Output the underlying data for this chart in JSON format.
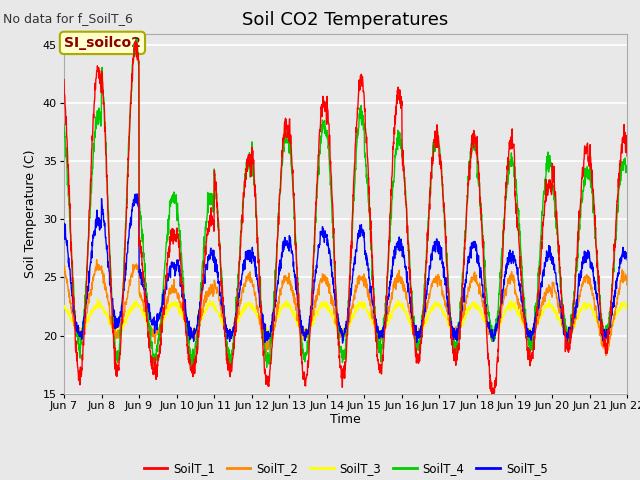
{
  "title": "Soil CO2 Temperatures",
  "xlabel": "Time",
  "ylabel": "Soil Temperature (C)",
  "note": "No data for f_SoilT_6",
  "annotation": "SI_soilco2",
  "ylim": [
    15,
    46
  ],
  "yticks": [
    15,
    20,
    25,
    30,
    35,
    40,
    45
  ],
  "background_color": "#e8e8e8",
  "plot_bg_color": "#e8e8e8",
  "series_colors": {
    "SoilT_1": "#ff0000",
    "SoilT_2": "#ff8800",
    "SoilT_3": "#ffff00",
    "SoilT_4": "#00cc00",
    "SoilT_5": "#0000ff"
  },
  "xtick_labels": [
    "Jun 7",
    "Jun 8",
    "Jun 9",
    "Jun 10",
    "Jun 11",
    "Jun 12",
    "Jun 13",
    "Jun 14",
    "Jun 15",
    "Jun 16",
    "Jun 17",
    "Jun 18",
    "Jun 19",
    "Jun 20",
    "Jun 21",
    "Jun 22"
  ],
  "grid_color": "#ffffff",
  "title_fontsize": 13,
  "label_fontsize": 9,
  "tick_fontsize": 8,
  "note_fontsize": 9,
  "annot_fontsize": 10
}
